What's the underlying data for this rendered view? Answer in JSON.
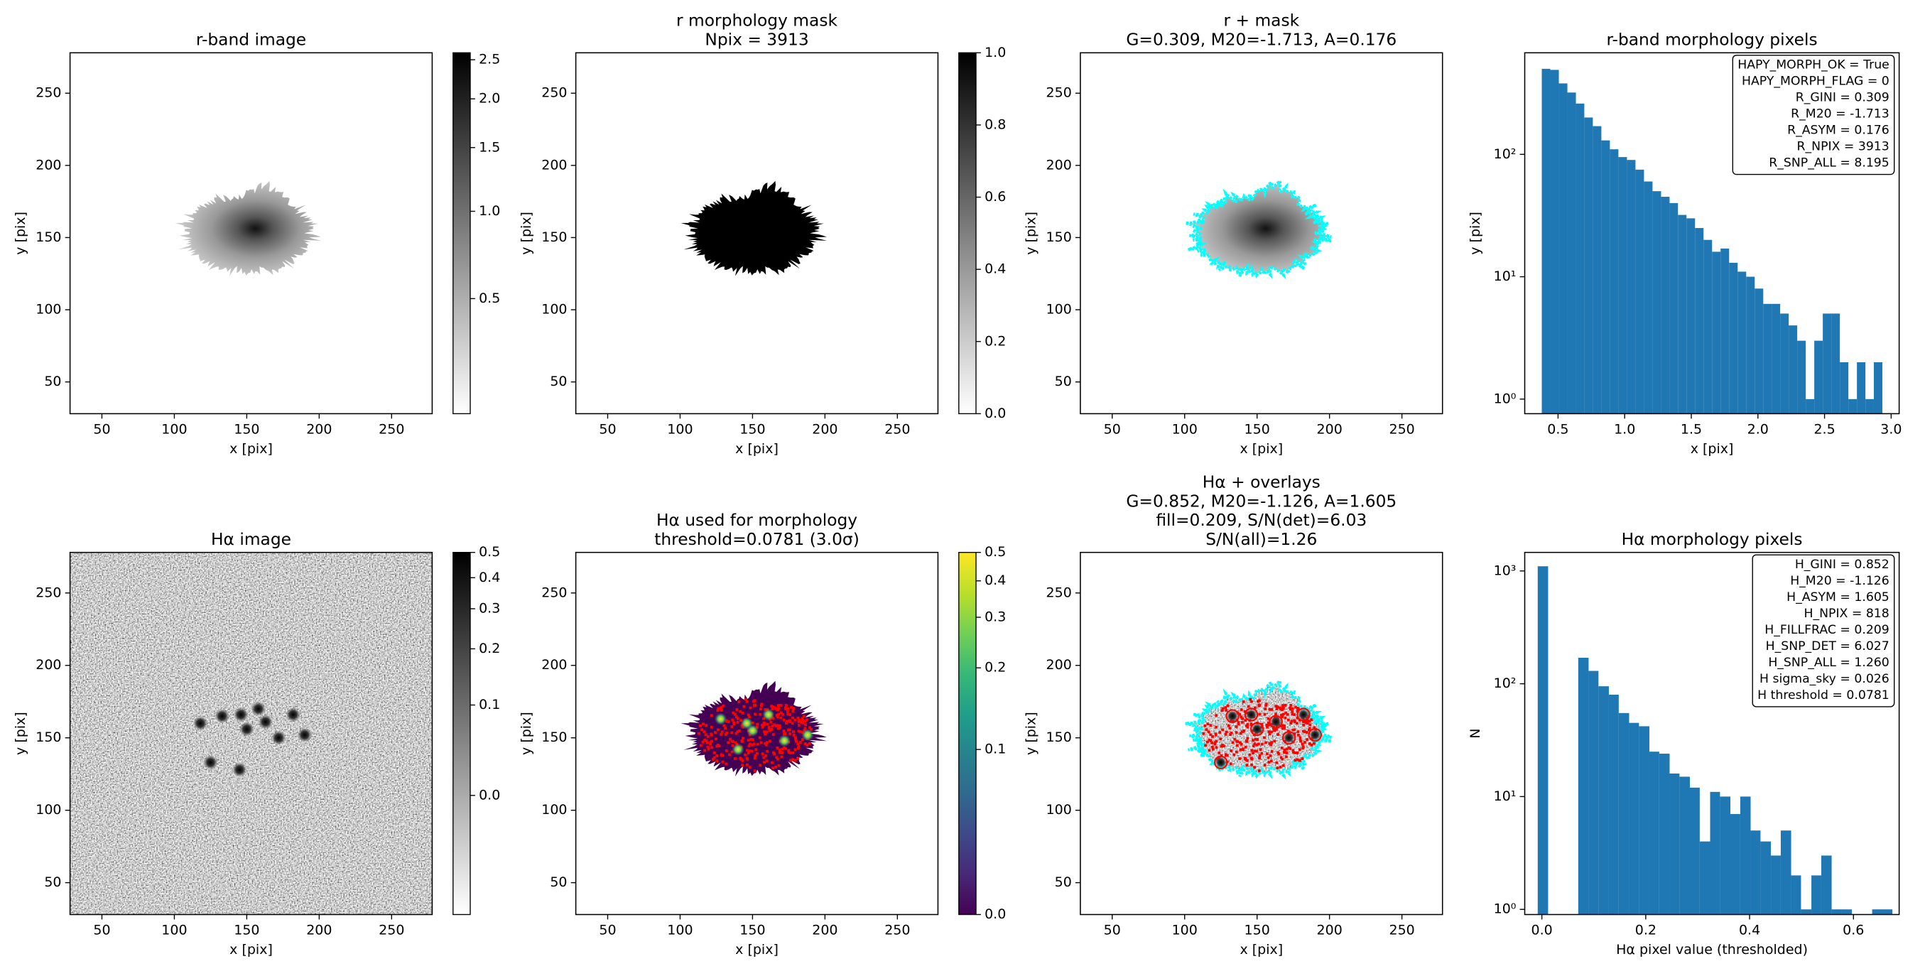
{
  "chart_data": [
    {
      "type": "image",
      "title": [
        "r-band image"
      ],
      "xlabel": "x [pix]",
      "ylabel": "y [pix]",
      "xlim": [
        28,
        278
      ],
      "ylim": [
        28,
        278
      ],
      "xticks": [
        50,
        100,
        150,
        200,
        250
      ],
      "yticks": [
        50,
        100,
        150,
        200,
        250
      ],
      "cmap": "gray_r",
      "colorbar": {
        "norm": "asinh",
        "clim": [
          0,
          2.6
        ],
        "ticks": [
          0.5,
          {
            "value": 1,
            "label": "1.0"
          },
          1.5,
          {
            "value": 2,
            "label": "2.0"
          },
          2.5
        ]
      }
    },
    {
      "type": "image",
      "title": [
        "r morphology mask",
        "Npix = 3913"
      ],
      "xlabel": "x [pix]",
      "ylabel": "y [pix]",
      "xlim": [
        28,
        278
      ],
      "ylim": [
        28,
        278
      ],
      "xticks": [
        50,
        100,
        150,
        200,
        250
      ],
      "yticks": [
        50,
        100,
        150,
        200,
        250
      ],
      "cmap": "gray_r",
      "colorbar": {
        "norm": "linear",
        "clim": [
          0,
          1
        ],
        "ticks": [
          {
            "value": 0,
            "label": "0.0"
          },
          0.2,
          0.4,
          0.6,
          0.8,
          {
            "value": 1,
            "label": "1.0"
          }
        ]
      }
    },
    {
      "type": "image",
      "title": [
        "r + mask",
        "G=0.309, M20=-1.713, A=0.176"
      ],
      "xlabel": "x [pix]",
      "ylabel": "y [pix]",
      "xlim": [
        28,
        278
      ],
      "ylim": [
        28,
        278
      ],
      "xticks": [
        50,
        100,
        150,
        200,
        250
      ],
      "yticks": [
        50,
        100,
        150,
        200,
        250
      ],
      "cmap": "gray_r",
      "mask_color": "#00ffff"
    },
    {
      "type": "histogram",
      "title": [
        "r-band morphology pixels"
      ],
      "xlabel": "x [pix]",
      "ylabel": "y [pix]",
      "color": "#1f77b4",
      "log_y": true,
      "bins": [
        0.378,
        0.442,
        0.506,
        0.57,
        0.634,
        0.697,
        0.761,
        0.825,
        0.889,
        0.953,
        1.017,
        1.081,
        1.145,
        1.209,
        1.273,
        1.337,
        1.4,
        1.464,
        1.528,
        1.592,
        1.656,
        1.72,
        1.784,
        1.848,
        1.912,
        1.976,
        2.04,
        2.103,
        2.167,
        2.231,
        2.295,
        2.359,
        2.423,
        2.487,
        2.551,
        2.615,
        2.679,
        2.743,
        2.807,
        2.87,
        2.934
      ],
      "counts": [
        500,
        490,
        380,
        320,
        260,
        200,
        170,
        130,
        110,
        95,
        90,
        75,
        60,
        50,
        45,
        40,
        32,
        30,
        25,
        20,
        16,
        17,
        13,
        11,
        10,
        8,
        6,
        6,
        5,
        4,
        3,
        1,
        3,
        5,
        5,
        2,
        1,
        2,
        1,
        2
      ],
      "xlim": [
        0.25,
        3.06
      ],
      "ylim": [
        0.76,
        676
      ],
      "xticks": [
        0.5,
        {
          "value": 1,
          "label": "1.0"
        },
        1.5,
        {
          "value": 2,
          "label": "2.0"
        },
        2.5,
        {
          "value": 3,
          "label": "3.0"
        }
      ],
      "yticks": [
        {
          "value": 1,
          "label": "10⁰"
        },
        {
          "value": 10,
          "label": "10¹"
        },
        {
          "value": 100,
          "label": "10²"
        }
      ],
      "annotation": [
        "HAPY_MORPH_OK = True",
        "HAPY_MORPH_FLAG = 0",
        "R_GINI = 0.309",
        "R_M20 = -1.713",
        "R_ASYM = 0.176",
        "R_NPIX = 3913",
        "R_SNP_ALL = 8.195"
      ]
    },
    {
      "type": "image",
      "title": [
        "Hα image"
      ],
      "xlabel": "x [pix]",
      "ylabel": "y [pix]",
      "xlim": [
        28,
        278
      ],
      "ylim": [
        28,
        278
      ],
      "xticks": [
        50,
        100,
        150,
        200,
        250
      ],
      "yticks": [
        50,
        100,
        150,
        200,
        250
      ],
      "cmap": "gray_r",
      "colorbar": {
        "norm": "asinh",
        "clim": [
          -0.08,
          0.5
        ],
        "ticks": [
          {
            "value": 0,
            "label": "0.0"
          },
          0.1,
          0.2,
          0.3,
          0.4,
          0.5
        ]
      }
    },
    {
      "type": "image",
      "title": [
        "Hα used for morphology",
        "threshold=0.0781 (3.0σ)"
      ],
      "xlabel": "x [pix]",
      "ylabel": "y [pix]",
      "xlim": [
        28,
        278
      ],
      "ylim": [
        28,
        278
      ],
      "xticks": [
        50,
        100,
        150,
        200,
        250
      ],
      "yticks": [
        50,
        100,
        150,
        200,
        250
      ],
      "cmap": "viridis",
      "detection_color": "#ff0000",
      "colorbar": {
        "norm": "asinh",
        "clim": [
          0,
          0.5
        ],
        "ticks": [
          {
            "value": 0,
            "label": "0.0"
          },
          0.1,
          0.2,
          0.3,
          0.4,
          0.5
        ]
      }
    },
    {
      "type": "image",
      "title": [
        "Hα + overlays",
        "G=0.852, M20=-1.126, A=1.605",
        "fill=0.209, S/N(det)=6.03",
        "S/N(all)=1.26"
      ],
      "xlabel": "x [pix]",
      "ylabel": "y [pix]",
      "xlim": [
        28,
        278
      ],
      "ylim": [
        28,
        278
      ],
      "xticks": [
        50,
        100,
        150,
        200,
        250
      ],
      "yticks": [
        50,
        100,
        150,
        200,
        250
      ],
      "cmap": "gray_r",
      "mask_color": "#00ffff",
      "detection_color": "#ff0000"
    },
    {
      "type": "histogram",
      "title": [
        "Hα morphology pixels"
      ],
      "xlabel": "Hα pixel value (thresholded)",
      "ylabel": "N",
      "color": "#1f77b4",
      "log_y": true,
      "bins": [
        -0.008,
        0.012,
        0.031,
        0.051,
        0.07,
        0.09,
        0.109,
        0.129,
        0.148,
        0.168,
        0.187,
        0.207,
        0.226,
        0.246,
        0.265,
        0.285,
        0.304,
        0.324,
        0.343,
        0.363,
        0.382,
        0.402,
        0.421,
        0.441,
        0.46,
        0.48,
        0.499,
        0.519,
        0.538,
        0.558,
        0.577,
        0.597,
        0.616,
        0.636,
        0.655,
        0.675
      ],
      "counts": [
        1100,
        0,
        0,
        0,
        170,
        130,
        95,
        80,
        55,
        45,
        42,
        25,
        24,
        16,
        15,
        12,
        4,
        11,
        10,
        7,
        10,
        5,
        4,
        3,
        5,
        2,
        1,
        2,
        3,
        1,
        1,
        0,
        0,
        1,
        1
      ],
      "xlim": [
        -0.033,
        0.688
      ],
      "ylim": [
        0.9,
        1460
      ],
      "xticks": [
        {
          "value": 0,
          "label": "0.0"
        },
        0.2,
        0.4,
        0.6
      ],
      "yticks": [
        {
          "value": 1,
          "label": "10⁰"
        },
        {
          "value": 10,
          "label": "10¹"
        },
        {
          "value": 100,
          "label": "10²"
        },
        {
          "value": 1000,
          "label": "10³"
        }
      ],
      "annotation": [
        "H_GINI = 0.852",
        "H_M20 = -1.126",
        "H_ASYM = 1.605",
        "H_NPIX = 818",
        "H_FILLFRAC = 0.209",
        "H_SNP_DET = 6.027",
        "H_SNP_ALL = 1.260",
        "H sigma_sky = 0.026",
        "H threshold = 0.0781"
      ]
    }
  ]
}
